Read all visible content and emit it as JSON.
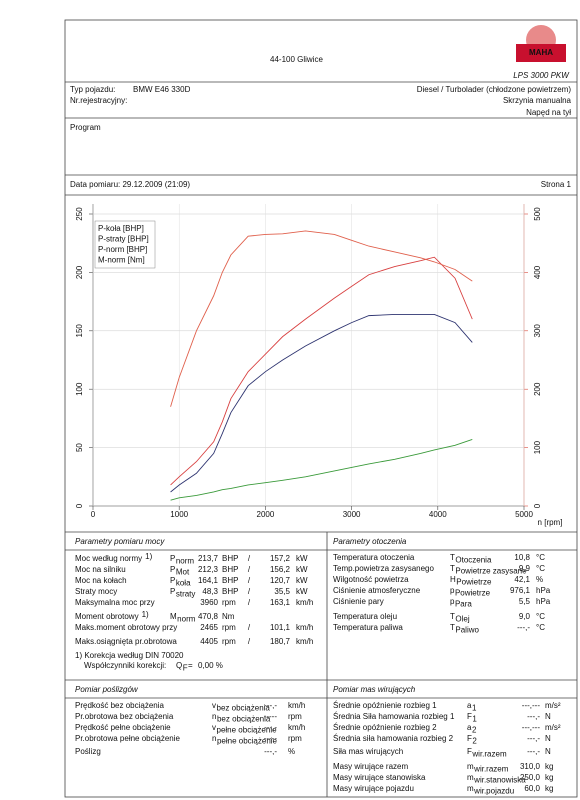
{
  "header": {
    "location": "44-100 Gliwice",
    "logo": "MAHA",
    "model": "LPS 3000 PKW"
  },
  "vehicle": {
    "type_label": "Typ pojazdu:",
    "type": "BMW E46 330D",
    "reg_label": "Nr.rejestracyjny:",
    "engine": "Diesel / Turbolader (chłodzone powietrzem)",
    "gearbox": "Skrzynia manualna",
    "drive": "Napęd na tył"
  },
  "program": {
    "label": "Program"
  },
  "measurement": {
    "date": "Data pomiaru: 29.12.2009 (21:09)",
    "page": "Strona 1"
  },
  "chart_data": {
    "type": "line",
    "xlabel": "n [rpm]",
    "x": [
      900,
      1000,
      1200,
      1400,
      1500,
      1600,
      1800,
      2000,
      2200,
      2465,
      2800,
      3000,
      3200,
      3500,
      3800,
      3960,
      4200,
      4400
    ],
    "xlim": [
      0,
      5000
    ],
    "xticks": [
      0,
      1000,
      2000,
      3000,
      4000,
      5000
    ],
    "ylim": [
      0,
      250
    ],
    "yticks": [
      0,
      50,
      100,
      150,
      200,
      250
    ],
    "y2lim": [
      0,
      500
    ],
    "y2ticks": [
      0,
      100,
      200,
      300,
      400,
      500
    ],
    "y2color": "#d84a3a",
    "grid": true,
    "legend": "upper left",
    "series": [
      {
        "name": "P-koła [BHP]",
        "color": "#2e3470",
        "values": [
          12,
          18,
          28,
          45,
          62,
          80,
          103,
          115,
          125,
          137,
          150,
          157,
          163,
          164,
          164,
          164,
          157,
          140
        ]
      },
      {
        "name": "P-straty [BHP]",
        "color": "#3a9a3a",
        "values": [
          5,
          7,
          9,
          12,
          14,
          15,
          18,
          20,
          22,
          25,
          30,
          33,
          36,
          40,
          45,
          48,
          52,
          57
        ]
      },
      {
        "name": "P-norm [BHP]",
        "color": "#d84040",
        "values": [
          18,
          25,
          38,
          55,
          72,
          92,
          115,
          130,
          145,
          160,
          178,
          188,
          198,
          205,
          210,
          213,
          195,
          160
        ]
      },
      {
        "name": "M-norm [Nm]",
        "color": "#e0604c",
        "axis": "y2",
        "values": [
          170,
          220,
          300,
          360,
          400,
          430,
          462,
          465,
          466,
          471,
          465,
          455,
          445,
          435,
          425,
          418,
          405,
          385
        ]
      }
    ]
  },
  "power": {
    "title": "Parametry pomiaru mocy",
    "rows": [
      {
        "label": "Moc według normy",
        "note": "1)",
        "sym": "P",
        "sub": "norm",
        "v1": "213,7",
        "u1": "BHP",
        "sep": "/",
        "v2": "157,2",
        "u2": "kW",
        "color": "#d83a3a"
      },
      {
        "label": "Moc na silniku",
        "sym": "P",
        "sub": "Mot",
        "v1": "212,3",
        "u1": "BHP",
        "sep": "/",
        "v2": "156,2",
        "u2": "kW",
        "color": "#d83a3a"
      },
      {
        "label": "Moc na kołach",
        "sym": "P",
        "sub": "koła",
        "v1": "164,1",
        "u1": "BHP",
        "sep": "/",
        "v2": "120,7",
        "u2": "kW",
        "color": "#2e3470"
      },
      {
        "label": "Straty mocy",
        "sym": "P",
        "sub": "straty",
        "v1": "48,3",
        "u1": "BHP",
        "sep": "/",
        "v2": "35,5",
        "u2": "kW",
        "color": "#3a9a3a"
      },
      {
        "label": "Maksymalna moc przy",
        "v1": "3960",
        "u1": "rpm",
        "sep": "/",
        "v2": "163,1",
        "u2": "km/h",
        "color": "#111",
        "v1_color": "#999"
      },
      {
        "label": "Moment obrotowy",
        "note": "1)",
        "sym": "M",
        "sub": "norm",
        "v1": "470,8",
        "u1": "Nm",
        "color": "#d83a3a"
      },
      {
        "label": "Maks.moment obrotowy przy",
        "v1": "2465",
        "u1": "rpm",
        "sep": "/",
        "v2": "101,1",
        "u2": "km/h",
        "color": "#111",
        "v1_color": "#999"
      },
      {
        "label": "Maks.osiągnięta pr.obrotowa",
        "v1": "4405",
        "u1": "rpm",
        "sep": "/",
        "v2": "180,7",
        "u2": "km/h",
        "color": "#111",
        "v1_color": "#999"
      }
    ],
    "footnote": "1) Korekcja według DIN 70020",
    "correction": {
      "label": "Współczynniki korekcji:",
      "sym": "Q",
      "sub": "F",
      "sep": "=",
      "v1": "0,00 %",
      "color": "#d83a3a"
    }
  },
  "ambient": {
    "title": "Parametry otoczenia",
    "rows": [
      {
        "label": "Temperatura otoczenia",
        "sym": "T",
        "sub": "Otoczenia",
        "v1": "10,8",
        "u1": "°C"
      },
      {
        "label": "Temp.powietrza zasysanego",
        "sym": "T",
        "sub": "Powietrze zasysane",
        "v1": "9,9",
        "u1": "°C"
      },
      {
        "label": "Wilgotność powietrza",
        "sym": "H",
        "sub": "Powietrze",
        "v1": "42,1",
        "u1": "%"
      },
      {
        "label": "Ciśnienie atmosferyczne",
        "sym": "p",
        "sub": "Powietrze",
        "v1": "976,1",
        "u1": "hPa"
      },
      {
        "label": "Ciśnienie pary",
        "sym": "p",
        "sub": "Para",
        "v1": "5,5",
        "u1": "hPa"
      },
      {
        "label": "Temperatura oleju",
        "sym": "T",
        "sub": "Olej",
        "v1": "9,0",
        "u1": "°C"
      },
      {
        "label": "Temperatura paliwa",
        "sym": "T",
        "sub": "Paliwo",
        "v1": "---,-",
        "u1": "°C"
      }
    ]
  },
  "slip": {
    "title": "Pomiar poślizgów",
    "rows": [
      {
        "label": "Prędkość bez obciążenia",
        "sym": "v",
        "sub": "bez obciążenia",
        "v1": "---,-",
        "u1": "km/h"
      },
      {
        "label": "Pr.obrotowa bez obciążenia",
        "sym": "n",
        "sub": "bez obciążenia",
        "v1": "-----",
        "u1": "rpm"
      },
      {
        "label": "Prędkość pełne obciążenie",
        "sym": "v",
        "sub": "pełne obciążenie",
        "v1": "---,-",
        "u1": "km/h"
      },
      {
        "label": "Pr.obrotowa pełne obciążenie",
        "sym": "n",
        "sub": "pełne obciążenie",
        "v1": "-----",
        "u1": "rpm"
      },
      {
        "label": "Poślizg",
        "v1": "---,-",
        "u1": "%"
      }
    ]
  },
  "masses": {
    "title": "Pomiar mas wirujących",
    "rows": [
      {
        "label": "Średnie opóźnienie rozbieg 1",
        "sym": "a",
        "sub": "1",
        "v1": "---,---",
        "u1": "m/s²"
      },
      {
        "label": "Średnia Siła hamowania rozbieg 1",
        "sym": "F",
        "sub": "1",
        "v1": "---,-",
        "u1": "N"
      },
      {
        "label": "Średnie opóźnienie rozbieg 2",
        "sym": "a",
        "sub": "2",
        "v1": "---,---",
        "u1": "m/s²"
      },
      {
        "label": "Średnia siła hamowania rozbieg 2",
        "sym": "F",
        "sub": "2",
        "v1": "---,-",
        "u1": "N"
      },
      {
        "label": "Siła mas wirujących",
        "sym": "F",
        "sub": "wir.razem",
        "v1": "---,-",
        "u1": "N"
      },
      {
        "label": "Masy wirujące razem",
        "sym": "m",
        "sub": "wir.razem",
        "v1": "310,0",
        "u1": "kg"
      },
      {
        "label": "Masy wirujące stanowiska",
        "sym": "m",
        "sub": "wir.stanowiska",
        "v1": "250,0",
        "u1": "kg"
      },
      {
        "label": "Masy wirujące pojazdu",
        "sym": "m",
        "sub": "wir.pojazdu",
        "v1": "60,0",
        "u1": "kg"
      }
    ]
  }
}
